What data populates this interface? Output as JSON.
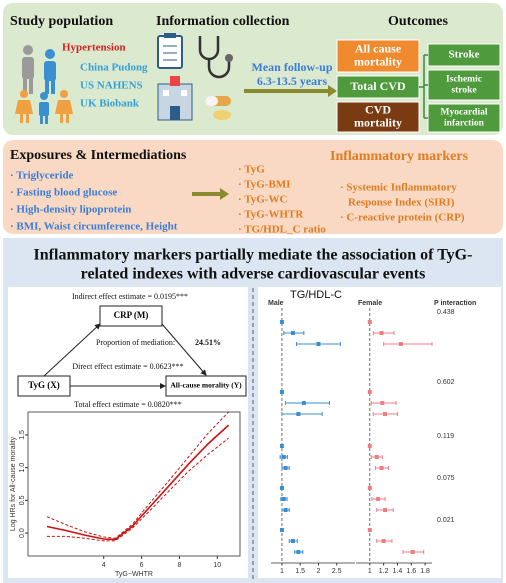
{
  "study": {
    "title": "Study population",
    "condition": "Hypertension",
    "cohorts": [
      "China Pudong",
      "US NAHENS",
      "UK Biobank"
    ]
  },
  "collection": {
    "title": "Information collection",
    "followup": [
      "Mean follow-up",
      "6.3-13.5 years"
    ]
  },
  "outcomes": {
    "title": "Outcomes",
    "main": [
      [
        "All cause",
        "mortality"
      ],
      [
        "Total CVD"
      ],
      [
        "CVD",
        "mortality"
      ]
    ],
    "sub": [
      [
        "Stroke"
      ],
      [
        "Ischemic",
        "stroke"
      ],
      [
        "Myocardial",
        "infarction"
      ]
    ]
  },
  "exposures": {
    "title": "Exposures & Intermediations",
    "items": [
      "· Triglyceride",
      "· Fasting blood glucose",
      "· High-density lipoprotein",
      "· BMI, Waist circumference, Height"
    ],
    "indexes": [
      "· TyG",
      "· TyG-BMI",
      "· TyG-WC",
      "· TyG-WHTR",
      "· TG/HDL_C ratio"
    ]
  },
  "inflammatory": {
    "title": "Inflammatory markers",
    "items": [
      "· Systemic Inflammatory",
      "Response Index (SIRI)",
      "· C-reactive protein (CRP)"
    ]
  },
  "findings": {
    "title_lines": [
      "Inflammatory markers partially mediate the association of TyG-",
      "related indexes with adverse cardiovascular events"
    ],
    "mediation": {
      "indirect": "Indirect effect estimate = 0.0195***",
      "mediator": "CRP (M)",
      "proportion_label": "Proportion of mediation:",
      "proportion_value": "24.51%",
      "direct": "Direct effect estimate = 0.0623***",
      "exposure": "TyG (X)",
      "outcome": "All-cause morality (Y)",
      "total": "Total effect estimate = 0.0820***"
    },
    "spline": {
      "x_label": "TyG−WHTR",
      "y_label": "Log HRs for All-cause morality",
      "color": "#cc1111",
      "xlim": [
        0,
        11.2
      ],
      "ylim": [
        -0.35,
        1.85
      ],
      "xticks": [
        4,
        6,
        8,
        10
      ],
      "yticks": [
        {
          "value": 0,
          "label": "0.0"
        },
        0.5,
        {
          "value": 1,
          "label": "1.0"
        },
        1.5
      ],
      "x": [
        1,
        2,
        3,
        4,
        4.6,
        5.5,
        6.5,
        7.5,
        8.5,
        9.5,
        10.6
      ],
      "y": [
        0.1,
        0.04,
        -0.03,
        -0.09,
        -0.1,
        0.1,
        0.42,
        0.74,
        1.06,
        1.36,
        1.65
      ],
      "lower": [
        -0.05,
        -0.05,
        -0.08,
        -0.12,
        -0.12,
        0.07,
        0.36,
        0.66,
        0.95,
        1.2,
        1.45
      ],
      "upper": [
        0.25,
        0.13,
        0.02,
        -0.06,
        -0.08,
        0.13,
        0.48,
        0.82,
        1.17,
        1.52,
        1.85
      ]
    },
    "forest": {
      "title": "TG/HDL-C",
      "male_label": "Male",
      "female_label": "Female",
      "p_label": "P interaction",
      "p_values": [
        "0.438",
        "0.602",
        "0.119",
        "0.075",
        "0.021"
      ],
      "male": {
        "color": "#3b8fd0",
        "xlim": [
          0.7,
          3.0
        ],
        "xticks": [
          1,
          1.5,
          2,
          2.5
        ],
        "estimates": [
          1,
          1.3,
          2.0,
          1,
          1.6,
          1.45,
          1,
          1.05,
          1.1,
          1,
          1.05,
          1.1,
          1,
          1.3,
          1.45
        ],
        "lower": [
          null,
          1.05,
          1.4,
          null,
          1.1,
          1.0,
          null,
          0.95,
          1.0,
          null,
          0.97,
          1.0,
          null,
          1.2,
          1.35
        ],
        "upper": [
          null,
          1.6,
          2.6,
          null,
          2.3,
          2.1,
          null,
          1.15,
          1.2,
          null,
          1.14,
          1.2,
          null,
          1.42,
          1.57
        ]
      },
      "female": {
        "color": "#f07d84",
        "xlim": [
          0.8,
          1.9
        ],
        "xticks": [
          1,
          1.2,
          1.4,
          1.6,
          1.8
        ],
        "estimates": [
          1,
          1.17,
          1.45,
          1,
          1.18,
          1.22,
          1,
          1.1,
          1.17,
          1,
          1.12,
          1.22,
          1,
          1.2,
          1.62
        ],
        "lower": [
          null,
          1.05,
          1.2,
          null,
          1.02,
          1.05,
          null,
          1.02,
          1.08,
          null,
          1.03,
          1.1,
          null,
          1.1,
          1.48
        ],
        "upper": [
          null,
          1.35,
          1.9,
          null,
          1.38,
          1.4,
          null,
          1.18,
          1.27,
          null,
          1.22,
          1.34,
          null,
          1.32,
          1.78
        ]
      }
    }
  }
}
